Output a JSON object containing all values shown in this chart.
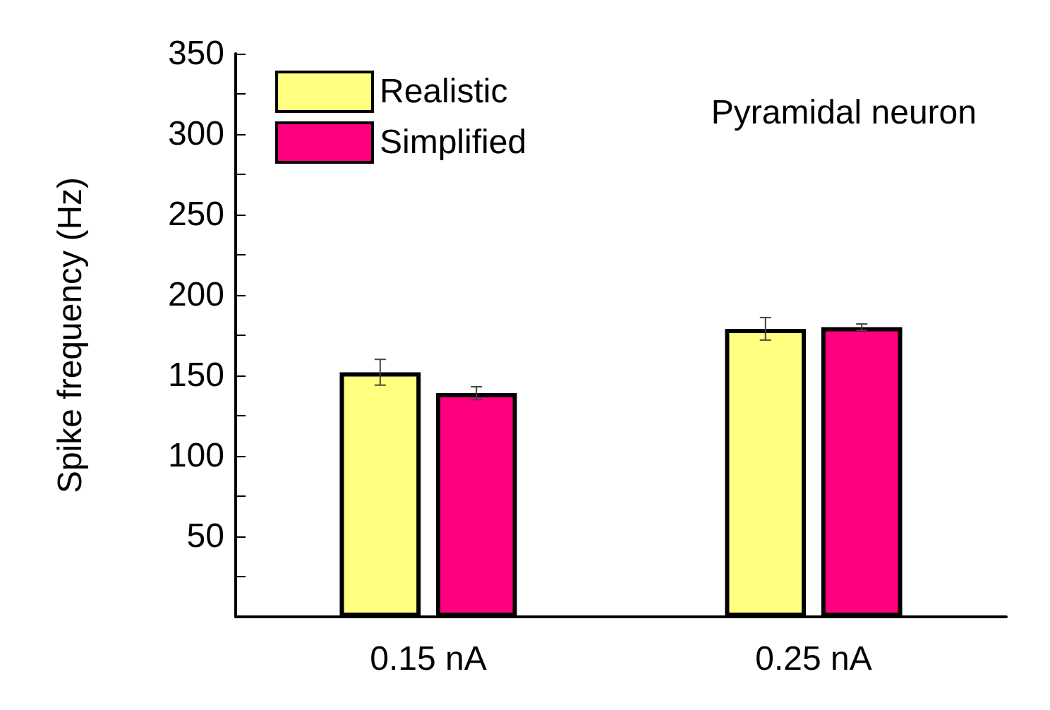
{
  "chart_data": {
    "type": "bar",
    "ylabel": "Spike frequency (Hz)",
    "categories": [
      "0.15 nA",
      "0.25 nA"
    ],
    "series": [
      {
        "name": "Realistic",
        "color": "#ffff80",
        "values": [
          152,
          179
        ],
        "errors": [
          8,
          7
        ]
      },
      {
        "name": "Simplified",
        "color": "#ff0080",
        "values": [
          139,
          180
        ],
        "errors": [
          4,
          2
        ]
      }
    ],
    "ylim": [
      0,
      350
    ],
    "yticks": [
      {
        "value": 0,
        "label": null
      },
      {
        "value": 25,
        "label": null
      },
      50,
      {
        "value": 75,
        "label": null
      },
      100,
      {
        "value": 125,
        "label": null
      },
      150,
      {
        "value": 175,
        "label": null
      },
      200,
      {
        "value": 225,
        "label": null
      },
      250,
      {
        "value": 275,
        "label": null
      },
      300,
      {
        "value": 325,
        "label": null
      },
      350
    ],
    "annotations": [
      "Pyramidal neuron"
    ],
    "legend": "top left",
    "grid": false
  }
}
